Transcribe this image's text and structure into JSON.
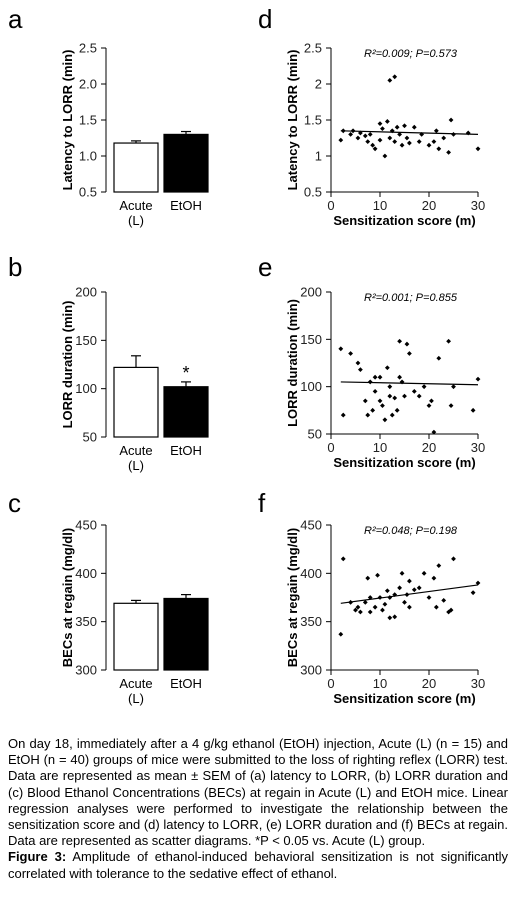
{
  "chart_data": [
    {
      "panel": "a",
      "type": "bar",
      "ylabel": "Latency to LORR (min)",
      "ylim": [
        0.5,
        2.5
      ],
      "yticks": [
        "0.5",
        "1.0",
        "1.5",
        "2.0",
        "2.5"
      ],
      "categories": [
        "Acute (L)",
        "EtOH"
      ],
      "values": [
        1.18,
        1.3
      ],
      "errors": [
        0.03,
        0.04
      ],
      "fills": [
        "#ffffff",
        "#000000"
      ],
      "significance": [
        "",
        ""
      ]
    },
    {
      "panel": "b",
      "type": "bar",
      "ylabel": "LORR duration (min)",
      "ylim": [
        50,
        200
      ],
      "yticks": [
        "50",
        "100",
        "150",
        "200"
      ],
      "categories": [
        "Acute (L)",
        "EtOH"
      ],
      "values": [
        122,
        102
      ],
      "errors": [
        12,
        5
      ],
      "fills": [
        "#ffffff",
        "#000000"
      ],
      "significance": [
        "",
        "*"
      ]
    },
    {
      "panel": "c",
      "type": "bar",
      "ylabel": "BECs at regain (mg/dl)",
      "ylim": [
        300,
        450
      ],
      "yticks": [
        "300",
        "350",
        "400",
        "450"
      ],
      "categories": [
        "Acute (L)",
        "EtOH"
      ],
      "values": [
        369,
        374
      ],
      "errors": [
        3,
        4
      ],
      "fills": [
        "#ffffff",
        "#000000"
      ],
      "significance": [
        "",
        ""
      ]
    },
    {
      "panel": "d",
      "type": "scatter",
      "ylabel": "Latency to LORR (min)",
      "xlabel": "Sensitization score (m)",
      "xlim": [
        0,
        30
      ],
      "xticks": [
        0,
        10,
        20,
        30
      ],
      "ylim": [
        0.5,
        2.5
      ],
      "yticks": [
        "0.5",
        "1",
        "1.5",
        "2",
        "2.5"
      ],
      "annotation": "R²=0.009; P=0.573",
      "regression": {
        "x": [
          2,
          30
        ],
        "y": [
          1.35,
          1.3
        ]
      },
      "points": {
        "x": [
          2,
          2.5,
          4,
          4.5,
          5.5,
          6,
          7,
          7.5,
          8,
          8.5,
          9,
          10,
          10,
          10.5,
          11,
          11.5,
          12,
          12,
          12.5,
          13,
          13,
          13.5,
          14,
          14.5,
          15,
          15.5,
          16,
          17,
          18,
          18.5,
          20,
          21,
          21.5,
          22,
          23,
          24,
          24.5,
          25,
          28,
          30
        ],
        "y": [
          1.22,
          1.35,
          1.3,
          1.35,
          1.25,
          1.32,
          1.28,
          1.2,
          1.3,
          1.15,
          1.1,
          1.45,
          1.22,
          1.38,
          1.0,
          1.48,
          2.05,
          1.25,
          1.35,
          2.1,
          1.2,
          1.4,
          1.3,
          1.15,
          1.42,
          1.25,
          1.18,
          1.4,
          1.2,
          1.3,
          1.15,
          1.2,
          1.35,
          1.1,
          1.25,
          1.05,
          1.5,
          1.3,
          1.32,
          1.1
        ]
      }
    },
    {
      "panel": "e",
      "type": "scatter",
      "ylabel": "LORR duration (min)",
      "xlabel": "Sensitization score (m)",
      "xlim": [
        0,
        30
      ],
      "xticks": [
        0,
        10,
        20,
        30
      ],
      "ylim": [
        50,
        200
      ],
      "yticks": [
        "50",
        "100",
        "150",
        "200"
      ],
      "annotation": "R²=0.001; P=0.855",
      "regression": {
        "x": [
          2,
          30
        ],
        "y": [
          105,
          102
        ]
      },
      "points": {
        "x": [
          2,
          2.5,
          4,
          5.5,
          6,
          7,
          7.5,
          8,
          8.5,
          9,
          9,
          10,
          10,
          10.5,
          11,
          11.5,
          12,
          12,
          12.5,
          13,
          13.5,
          14,
          14,
          14.5,
          15,
          15.5,
          16,
          17,
          18,
          19,
          20,
          20.5,
          21,
          22,
          24,
          24.5,
          25,
          29,
          30
        ],
        "y": [
          140,
          70,
          135,
          125,
          118,
          85,
          70,
          105,
          75,
          110,
          95,
          110,
          85,
          80,
          65,
          120,
          90,
          100,
          70,
          88,
          75,
          148,
          110,
          105,
          90,
          145,
          135,
          95,
          90,
          100,
          80,
          85,
          52,
          130,
          148,
          80,
          100,
          75,
          108
        ]
      }
    },
    {
      "panel": "f",
      "type": "scatter",
      "ylabel": "BECs at regain (mg/dl)",
      "xlabel": "Sensitization score (m)",
      "xlim": [
        0,
        30
      ],
      "xticks": [
        0,
        10,
        20,
        30
      ],
      "ylim": [
        300,
        450
      ],
      "yticks": [
        "300",
        "350",
        "400",
        "450"
      ],
      "annotation": "R²=0.048; P=0.198",
      "regression": {
        "x": [
          2,
          30
        ],
        "y": [
          369,
          388
        ]
      },
      "points": {
        "x": [
          2,
          2.5,
          4,
          5,
          5.5,
          6,
          7,
          7.5,
          8,
          8,
          9,
          9.5,
          10,
          10.5,
          11,
          11.5,
          12,
          12,
          13,
          13,
          14,
          14.5,
          15,
          15.5,
          16,
          16,
          17,
          18,
          19,
          20,
          21,
          21.5,
          22,
          23,
          24,
          24.5,
          25,
          29,
          30
        ],
        "y": [
          337,
          415,
          370,
          362,
          365,
          360,
          370,
          395,
          375,
          360,
          365,
          398,
          375,
          362,
          368,
          382,
          375,
          354,
          378,
          355,
          385,
          400,
          370,
          378,
          392,
          365,
          383,
          385,
          400,
          375,
          395,
          365,
          408,
          372,
          360,
          362,
          415,
          380,
          390
        ]
      }
    }
  ],
  "caption": {
    "body": "On day 18, immediately after a 4 g/kg ethanol (EtOH) injection, Acute (L) (n = 15) and EtOH (n = 40) groups of mice were submitted to the loss of righting reflex (LORR) test. Data are represented as mean ± SEM of (a) latency to LORR, (b) LORR duration and (c) Blood Ethanol Concentrations (BECs) at regain in Acute (L) and EtOH mice. Linear regression analyses were performed to investigate the relationship between the sensitization score and (d) latency to LORR, (e) LORR duration and (f) BECs at regain. Data are represented as scatter diagrams. *P < 0.05 vs. Acute (L) group.",
    "figure_label": "Figure 3:",
    "title": " Amplitude of ethanol-induced behavioral sensitization is not significantly correlated with tolerance to the sedative effect of ethanol."
  }
}
